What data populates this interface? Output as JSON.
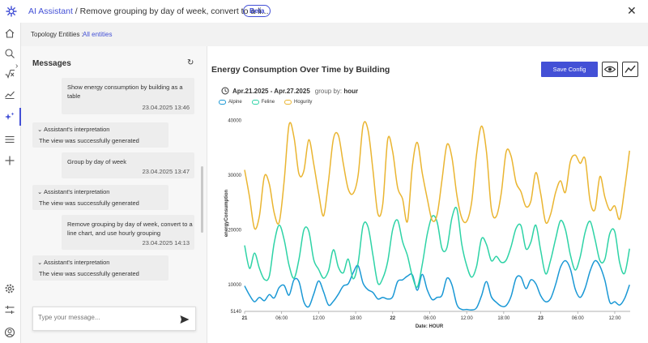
{
  "header": {
    "app_name": "AI Assistant",
    "separator": " / ",
    "conversation_title": "Remove grouping by day of week, convert to a li...",
    "badge": "Beta",
    "close_symbol": "✕"
  },
  "topology": {
    "label": "Topology Entities :",
    "value": "All entities"
  },
  "messages_panel": {
    "title": "Messages",
    "items": [
      {
        "type": "user",
        "text_lines": [
          "Show energy consumption by building as a",
          "table"
        ],
        "timestamp": "23.04.2025 13:46"
      },
      {
        "type": "interp",
        "header": "Assistant's interpretation",
        "body": "The view was successfully generated"
      },
      {
        "type": "user",
        "text_lines": [
          "Group by day of week"
        ],
        "timestamp": "23.04.2025 13:47"
      },
      {
        "type": "interp",
        "header": "Assistant's interpretation",
        "body": "The view was successfully generated"
      },
      {
        "type": "user",
        "text_lines": [
          "Remove grouping by day of week, convert to a",
          "line chart, and use hourly grouping"
        ],
        "timestamp": "23.04.2025 14:13"
      },
      {
        "type": "interp",
        "header": "Assistant's interpretation",
        "body": "The view was successfully generated"
      }
    ],
    "input_placeholder": "Type your message..."
  },
  "chart_panel": {
    "title": "Energy Consumption Over Time by Building",
    "save_label": "Save Config",
    "date_range": "Apr.21.2025 - Apr.27.2025",
    "group_by_label": "group by:",
    "group_by_value": "hour"
  },
  "colors": {
    "accent": "#4350d6",
    "alpine": "#1a98d5",
    "feline": "#2ed3a6",
    "hogurity": "#eab531"
  },
  "chart_data": {
    "type": "line",
    "xlabel": "Date: HOUR",
    "ylabel": "energyConsumption",
    "x_ticks": [
      {
        "label": "21",
        "h": 0,
        "bold": true
      },
      {
        "label": "06:00",
        "h": 6
      },
      {
        "label": "12:00",
        "h": 12
      },
      {
        "label": "18:00",
        "h": 18
      },
      {
        "label": "22",
        "h": 24,
        "bold": true
      },
      {
        "label": "06:00",
        "h": 30
      },
      {
        "label": "12:00",
        "h": 36
      },
      {
        "label": "18:00",
        "h": 42
      },
      {
        "label": "23",
        "h": 48,
        "bold": true
      },
      {
        "label": "06:00",
        "h": 54
      },
      {
        "label": "12:00",
        "h": 60
      }
    ],
    "y_ticks": [
      5140,
      10000,
      20000,
      30000,
      40000
    ],
    "ylim": [
      5140,
      41000
    ],
    "xlim": [
      0,
      62.5
    ],
    "series": [
      {
        "name": "Alpine",
        "color": "#1a98d5",
        "points": [
          [
            0,
            9800
          ],
          [
            0.8,
            8100
          ],
          [
            1.6,
            6900
          ],
          [
            2.4,
            7700
          ],
          [
            3.2,
            7100
          ],
          [
            4,
            8200
          ],
          [
            4.8,
            7600
          ],
          [
            5.6,
            9500
          ],
          [
            6.4,
            9900
          ],
          [
            7.2,
            8100
          ],
          [
            8,
            10900
          ],
          [
            8.8,
            10600
          ],
          [
            9.6,
            6900
          ],
          [
            10.4,
            6000
          ],
          [
            11.2,
            8300
          ],
          [
            12,
            10700
          ],
          [
            12.8,
            8700
          ],
          [
            13.6,
            6300
          ],
          [
            14.4,
            7000
          ],
          [
            15.2,
            8300
          ],
          [
            16,
            9800
          ],
          [
            16.8,
            10200
          ],
          [
            17.6,
            12200
          ],
          [
            18.4,
            13500
          ],
          [
            19.2,
            10300
          ],
          [
            20,
            9100
          ],
          [
            20.8,
            8600
          ],
          [
            21.6,
            7400
          ],
          [
            22.4,
            7700
          ],
          [
            23.2,
            7400
          ],
          [
            24,
            7800
          ],
          [
            24.8,
            10600
          ],
          [
            25.6,
            10900
          ],
          [
            26.4,
            11600
          ],
          [
            27.2,
            11800
          ],
          [
            28,
            9000
          ],
          [
            28.8,
            11900
          ],
          [
            29.6,
            9100
          ],
          [
            30.4,
            7300
          ],
          [
            31.2,
            7700
          ],
          [
            32,
            8100
          ],
          [
            32.8,
            11200
          ],
          [
            33.6,
            10000
          ],
          [
            34.4,
            6400
          ],
          [
            35.2,
            5500
          ],
          [
            36,
            5500
          ],
          [
            36.8,
            5400
          ],
          [
            37.6,
            5800
          ],
          [
            38.4,
            8000
          ],
          [
            39.2,
            10600
          ],
          [
            40,
            7800
          ],
          [
            40.8,
            6800
          ],
          [
            41.6,
            6100
          ],
          [
            42.4,
            6200
          ],
          [
            43.2,
            7900
          ],
          [
            44,
            11200
          ],
          [
            44.8,
            11400
          ],
          [
            45.6,
            9300
          ],
          [
            46.4,
            10900
          ],
          [
            47.2,
            10200
          ],
          [
            48,
            8000
          ],
          [
            48.8,
            6900
          ],
          [
            49.6,
            7500
          ],
          [
            50.4,
            10000
          ],
          [
            51.2,
            13200
          ],
          [
            52,
            14400
          ],
          [
            52.8,
            12900
          ],
          [
            53.6,
            9200
          ],
          [
            54.4,
            7700
          ],
          [
            55.2,
            9400
          ],
          [
            56,
            12500
          ],
          [
            56.8,
            14400
          ],
          [
            57.6,
            13400
          ],
          [
            58.4,
            10800
          ],
          [
            59.2,
            6800
          ],
          [
            60,
            6900
          ],
          [
            60.8,
            6300
          ],
          [
            61.6,
            7500
          ],
          [
            62.4,
            10000
          ]
        ]
      },
      {
        "name": "Feline",
        "color": "#2ed3a6",
        "points": [
          [
            0,
            17200
          ],
          [
            0.8,
            13000
          ],
          [
            1.6,
            15800
          ],
          [
            2.4,
            13000
          ],
          [
            3.2,
            11000
          ],
          [
            4,
            11600
          ],
          [
            4.8,
            17700
          ],
          [
            5.6,
            20900
          ],
          [
            6.4,
            18300
          ],
          [
            7.2,
            13600
          ],
          [
            8,
            11200
          ],
          [
            8.8,
            14600
          ],
          [
            9.6,
            20000
          ],
          [
            10.4,
            19800
          ],
          [
            11.2,
            14600
          ],
          [
            12,
            12800
          ],
          [
            12.8,
            11200
          ],
          [
            13.6,
            12600
          ],
          [
            14.4,
            16400
          ],
          [
            15.2,
            13200
          ],
          [
            16,
            12200
          ],
          [
            16.8,
            14700
          ],
          [
            17.6,
            11100
          ],
          [
            18.4,
            14000
          ],
          [
            19.2,
            20800
          ],
          [
            20,
            20600
          ],
          [
            20.8,
            15400
          ],
          [
            21.6,
            10300
          ],
          [
            22.4,
            11200
          ],
          [
            23.2,
            14300
          ],
          [
            24,
            20100
          ],
          [
            24.8,
            21800
          ],
          [
            25.6,
            17900
          ],
          [
            26.4,
            15300
          ],
          [
            27.2,
            11500
          ],
          [
            28,
            9600
          ],
          [
            28.8,
            13700
          ],
          [
            29.6,
            19200
          ],
          [
            30.4,
            22500
          ],
          [
            31.2,
            21500
          ],
          [
            32,
            16600
          ],
          [
            32.8,
            16800
          ],
          [
            33.6,
            22200
          ],
          [
            34.4,
            23900
          ],
          [
            35.2,
            17400
          ],
          [
            36,
            13500
          ],
          [
            36.8,
            11400
          ],
          [
            37.6,
            13400
          ],
          [
            38.4,
            18400
          ],
          [
            39.2,
            17400
          ],
          [
            40,
            14400
          ],
          [
            40.8,
            15200
          ],
          [
            41.6,
            14100
          ],
          [
            42.4,
            14500
          ],
          [
            43.2,
            17000
          ],
          [
            44,
            20300
          ],
          [
            44.8,
            20800
          ],
          [
            45.6,
            16600
          ],
          [
            46.4,
            17800
          ],
          [
            47.2,
            20900
          ],
          [
            48,
            16200
          ],
          [
            48.8,
            12000
          ],
          [
            49.6,
            14500
          ],
          [
            50.4,
            18300
          ],
          [
            51.2,
            21700
          ],
          [
            52,
            20100
          ],
          [
            52.8,
            15500
          ],
          [
            53.6,
            12700
          ],
          [
            54.4,
            15100
          ],
          [
            55.2,
            19600
          ],
          [
            56,
            21600
          ],
          [
            56.8,
            18300
          ],
          [
            57.6,
            14400
          ],
          [
            58.4,
            14700
          ],
          [
            59.2,
            19400
          ],
          [
            60,
            19700
          ],
          [
            60.8,
            14000
          ],
          [
            61.6,
            12100
          ],
          [
            62.4,
            16600
          ]
        ]
      },
      {
        "name": "Hogurity",
        "color": "#eab531",
        "points": [
          [
            0,
            31000
          ],
          [
            0.8,
            26000
          ],
          [
            1.6,
            20300
          ],
          [
            2.4,
            22600
          ],
          [
            3.2,
            29800
          ],
          [
            4,
            28400
          ],
          [
            4.8,
            23100
          ],
          [
            5.6,
            21400
          ],
          [
            6.4,
            28800
          ],
          [
            7.2,
            39200
          ],
          [
            8,
            37000
          ],
          [
            8.8,
            30300
          ],
          [
            9.6,
            30800
          ],
          [
            10.4,
            36500
          ],
          [
            11.2,
            32100
          ],
          [
            12,
            26700
          ],
          [
            12.8,
            22600
          ],
          [
            13.6,
            29000
          ],
          [
            14.4,
            36700
          ],
          [
            15.2,
            37300
          ],
          [
            16,
            32100
          ],
          [
            16.8,
            27500
          ],
          [
            17.6,
            26700
          ],
          [
            18.4,
            30000
          ],
          [
            19.2,
            39100
          ],
          [
            20,
            38300
          ],
          [
            20.8,
            31000
          ],
          [
            21.6,
            23000
          ],
          [
            22.4,
            24800
          ],
          [
            23.2,
            36600
          ],
          [
            24,
            34300
          ],
          [
            24.8,
            27800
          ],
          [
            25.6,
            25700
          ],
          [
            26.4,
            21600
          ],
          [
            27.2,
            31800
          ],
          [
            28,
            36000
          ],
          [
            28.8,
            30400
          ],
          [
            29.6,
            25800
          ],
          [
            30.4,
            21800
          ],
          [
            31.2,
            22800
          ],
          [
            32,
            29200
          ],
          [
            32.8,
            35600
          ],
          [
            33.6,
            33300
          ],
          [
            34.4,
            26400
          ],
          [
            35.2,
            22200
          ],
          [
            36,
            21600
          ],
          [
            36.8,
            25100
          ],
          [
            37.6,
            33900
          ],
          [
            38.4,
            39000
          ],
          [
            39.2,
            34400
          ],
          [
            40,
            23900
          ],
          [
            40.8,
            22500
          ],
          [
            41.6,
            26700
          ],
          [
            42.4,
            34300
          ],
          [
            43.2,
            33500
          ],
          [
            44,
            28700
          ],
          [
            44.8,
            27000
          ],
          [
            45.6,
            24300
          ],
          [
            46.4,
            25300
          ],
          [
            47.2,
            30500
          ],
          [
            48,
            26600
          ],
          [
            48.8,
            21400
          ],
          [
            49.6,
            22900
          ],
          [
            50.4,
            26800
          ],
          [
            51.2,
            29000
          ],
          [
            52,
            26900
          ],
          [
            52.8,
            32500
          ],
          [
            53.6,
            33700
          ],
          [
            54.4,
            32200
          ],
          [
            55.2,
            33000
          ],
          [
            56,
            25300
          ],
          [
            56.8,
            23800
          ],
          [
            57.6,
            29800
          ],
          [
            58.4,
            26000
          ],
          [
            59.2,
            23600
          ],
          [
            60,
            24400
          ],
          [
            60.8,
            22000
          ],
          [
            61.6,
            27500
          ],
          [
            62.4,
            34500
          ]
        ]
      }
    ],
    "legend_placement": "top-left"
  }
}
